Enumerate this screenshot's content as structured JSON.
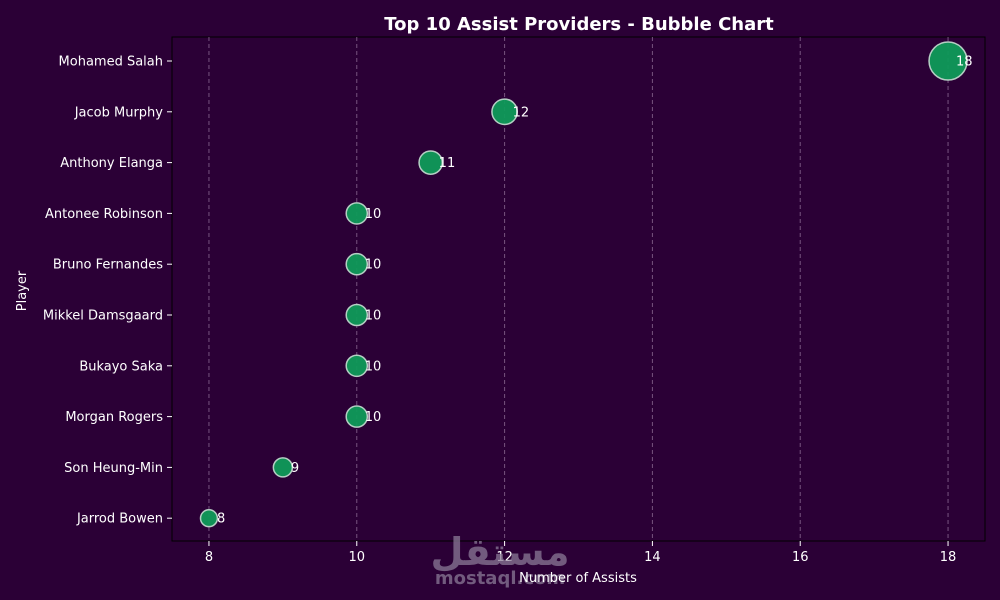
{
  "chart_data": {
    "type": "scatter",
    "title": "Top 10 Assist Providers - Bubble Chart",
    "xlabel": "Number of Assists",
    "ylabel": "Player",
    "xlim": [
      7.5,
      18.5
    ],
    "xticks": [
      8,
      10,
      12,
      14,
      16,
      18
    ],
    "grid": "x-dashed",
    "categories": [
      "Mohamed Salah",
      "Jacob Murphy",
      "Anthony Elanga",
      "Antonee Robinson",
      "Bruno Fernandes",
      "Mikkel Damsgaard",
      "Bukayo Saka",
      "Morgan Rogers",
      "Son Heung-Min",
      "Jarrod Bowen"
    ],
    "values": [
      18,
      12,
      11,
      10,
      10,
      10,
      10,
      10,
      9,
      8
    ],
    "data_labels": [
      "18",
      "12",
      "11",
      "10",
      "10",
      "10",
      "10",
      "10",
      "9",
      "8"
    ]
  },
  "colors": {
    "background": "#2b0036",
    "bubble_fill": "#0f9a5a",
    "bubble_stroke": "#b5cfc4",
    "grid": "#8a6a92",
    "text": "#ffffff"
  },
  "watermark": {
    "arabic_text": "مستقل",
    "latin_text": "mostaql.com"
  }
}
